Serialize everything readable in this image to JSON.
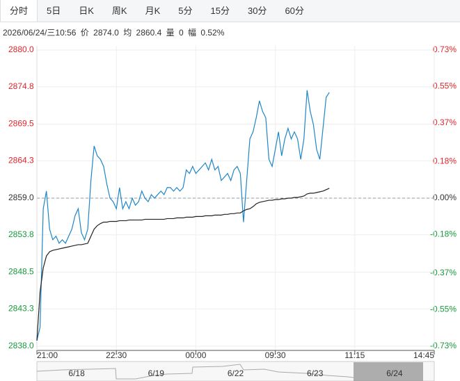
{
  "tabs": [
    "分时",
    "5日",
    "日K",
    "周K",
    "月K",
    "5分",
    "15分",
    "30分",
    "60分"
  ],
  "selected_tab": "分时",
  "info": {
    "datetime": "2026/06/24/三10:56",
    "price_label": "价",
    "price": "2874.0",
    "avg_label": "均",
    "avg": "2860.4",
    "vol_label": "量",
    "vol": "0",
    "range_label": "幅",
    "range": "0.52%"
  },
  "navigator": {
    "labels": [
      "6/18",
      "6/19",
      "6/22",
      "6/23",
      "6/24"
    ]
  },
  "chart_data": {
    "type": "line",
    "xlim": [
      0,
      125
    ],
    "xticks": [
      {
        "value": 0,
        "label": "21:00"
      },
      {
        "value": 25,
        "label": "22:30"
      },
      {
        "value": 50,
        "label": "00:00"
      },
      {
        "value": 75,
        "label": "09:30"
      },
      {
        "value": 100,
        "label": "11:15"
      },
      {
        "value": 125,
        "label": "14:45"
      }
    ],
    "ylim": [
      2838,
      2880
    ],
    "yticks": [
      {
        "value": 2880,
        "label": "2880.0"
      },
      {
        "value": 2874.8,
        "label": "2874.8"
      },
      {
        "value": 2869.5,
        "label": "2869.5"
      },
      {
        "value": 2864.3,
        "label": "2864.3"
      },
      {
        "value": 2859,
        "label": "2859.0"
      },
      {
        "value": 2853.8,
        "label": "2853.8"
      },
      {
        "value": 2848.5,
        "label": "2848.5"
      },
      {
        "value": 2843.3,
        "label": "2843.3"
      },
      {
        "value": 2838,
        "label": "2838.0"
      }
    ],
    "y2lim": [
      -0.73,
      0.73
    ],
    "y2ticks": [
      {
        "value": 0.73,
        "label": "0.73%"
      },
      {
        "value": 0.55,
        "label": "0.55%"
      },
      {
        "value": 0.37,
        "label": "0.37%"
      },
      {
        "value": 0.18,
        "label": "0.18%"
      },
      {
        "value": 0,
        "label": "0.00%"
      },
      {
        "value": -0.18,
        "label": "-0.18%"
      },
      {
        "value": -0.37,
        "label": "-0.37%"
      },
      {
        "value": -0.55,
        "label": "-0.55%"
      },
      {
        "value": -0.73,
        "label": "-0.73%"
      }
    ],
    "up_color": "#e0252b",
    "down_color": "#17993b",
    "flat_color": "#333333",
    "grid": true,
    "series": [
      {
        "color": "#1f86c8",
        "values": [
          2838.8,
          2840.7,
          2857.5,
          2860.0,
          2854.6,
          2853.1,
          2853.6,
          2852.6,
          2853.1,
          2852.6,
          2853.6,
          2854.6,
          2856.5,
          2857.5,
          2854.1,
          2853.1,
          2854.6,
          2861.5,
          2866.4,
          2865.0,
          2864.5,
          2863.5,
          2861.0,
          2859.0,
          2858.5,
          2857.5,
          2860.5,
          2857.5,
          2858.5,
          2857.5,
          2859.0,
          2858.0,
          2858.5,
          2860.0,
          2859.0,
          2858.5,
          2859.5,
          2859.0,
          2859.5,
          2860.0,
          2859.5,
          2860.5,
          2860.5,
          2860.0,
          2860.5,
          2860.0,
          2860.5,
          2863.0,
          2862.5,
          2863.5,
          2862.5,
          2863.0,
          2863.5,
          2864.0,
          2863.0,
          2864.5,
          2863.0,
          2863.5,
          2861.5,
          2862.0,
          2862.5,
          2861.5,
          2863.0,
          2863.5,
          2862.5,
          2855.6,
          2861.5,
          2867.4,
          2868.4,
          2870.4,
          2872.8,
          2871.3,
          2870.4,
          2864.5,
          2863.5,
          2865.9,
          2868.4,
          2865.0,
          2867.4,
          2868.9,
          2867.4,
          2868.4,
          2867.4,
          2864.5,
          2867.4,
          2874.3,
          2871.3,
          2869.4,
          2865.9,
          2864.5,
          2868.9,
          2873.3,
          2874.0
        ]
      },
      {
        "color": "#222222",
        "values": [
          2838.8,
          2845.7,
          2849.1,
          2850.8,
          2851.4,
          2851.6,
          2851.7,
          2851.8,
          2851.9,
          2852.0,
          2852.1,
          2852.2,
          2852.3,
          2852.4,
          2852.4,
          2852.5,
          2852.6,
          2853.6,
          2854.6,
          2855.1,
          2855.4,
          2855.6,
          2855.6,
          2855.7,
          2855.7,
          2855.7,
          2855.8,
          2855.8,
          2855.8,
          2855.9,
          2855.9,
          2855.9,
          2855.9,
          2855.9,
          2856.0,
          2856.0,
          2856.0,
          2856.0,
          2856.0,
          2856.0,
          2856.0,
          2856.1,
          2856.1,
          2856.1,
          2856.2,
          2856.2,
          2856.2,
          2856.3,
          2856.3,
          2856.3,
          2856.4,
          2856.4,
          2856.4,
          2856.5,
          2856.5,
          2856.5,
          2856.6,
          2856.6,
          2856.6,
          2856.7,
          2856.7,
          2856.8,
          2856.8,
          2856.9,
          2856.9,
          2857.2,
          2857.4,
          2857.5,
          2857.8,
          2858.2,
          2858.4,
          2858.5,
          2858.6,
          2858.7,
          2858.7,
          2858.8,
          2858.8,
          2858.9,
          2858.9,
          2859.0,
          2859.0,
          2859.1,
          2859.1,
          2859.2,
          2859.3,
          2859.6,
          2859.7,
          2859.7,
          2859.8,
          2859.9,
          2860.0,
          2860.2,
          2860.4
        ]
      }
    ]
  }
}
